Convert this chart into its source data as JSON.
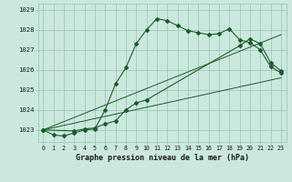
{
  "title": "Graphe pression niveau de la mer (hPa)",
  "bg_color": "#cbe8df",
  "grid_color": "#9dbfb8",
  "line_color": "#1a5c2a",
  "xlim": [
    -0.5,
    23.5
  ],
  "ylim": [
    1022.4,
    1029.3
  ],
  "yticks": [
    1023,
    1024,
    1025,
    1026,
    1027,
    1028,
    1029
  ],
  "xticks": [
    0,
    1,
    2,
    3,
    4,
    5,
    6,
    7,
    8,
    9,
    10,
    11,
    12,
    13,
    14,
    15,
    16,
    17,
    18,
    19,
    20,
    21,
    22,
    23
  ],
  "series1_x": [
    0,
    1,
    2,
    3,
    4,
    5,
    6,
    7,
    8,
    9,
    10,
    11,
    12,
    13,
    14,
    15,
    16,
    17,
    18,
    19,
    20,
    21,
    22,
    23
  ],
  "series1_y": [
    1023.0,
    1022.75,
    1022.7,
    1022.85,
    1023.0,
    1023.05,
    1024.0,
    1025.3,
    1026.1,
    1027.3,
    1028.0,
    1028.55,
    1028.45,
    1028.2,
    1027.95,
    1027.85,
    1027.75,
    1027.8,
    1028.05,
    1027.5,
    1027.35,
    1027.0,
    1026.15,
    1025.85
  ],
  "series2_x": [
    0,
    3,
    4,
    5,
    6,
    7,
    8,
    9,
    10,
    19,
    20,
    21,
    22,
    23
  ],
  "series2_y": [
    1023.0,
    1022.95,
    1023.05,
    1023.1,
    1023.3,
    1023.45,
    1024.0,
    1024.35,
    1024.5,
    1027.2,
    1027.55,
    1027.3,
    1026.35,
    1025.95
  ],
  "series3_x": [
    0,
    23
  ],
  "series3_y": [
    1023.0,
    1027.75
  ],
  "series4_x": [
    0,
    23
  ],
  "series4_y": [
    1023.0,
    1025.6
  ]
}
